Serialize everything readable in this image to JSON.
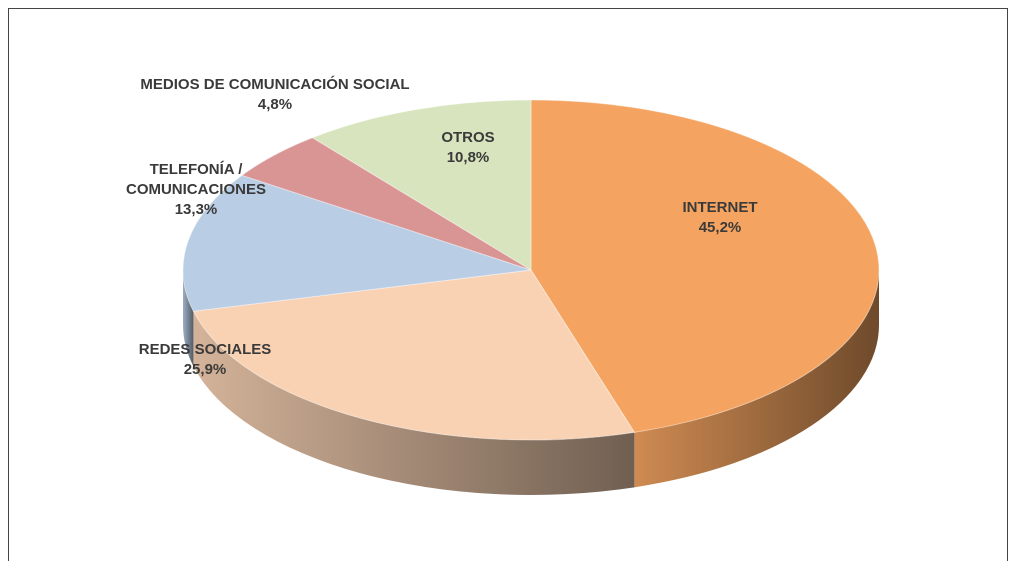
{
  "chart_data": {
    "type": "pie",
    "categories": [
      "INTERNET",
      "REDES SOCIALES",
      "TELEFONÍA / COMUNICACIONES",
      "MEDIOS DE COMUNICACIÓN SOCIAL",
      "OTROS"
    ],
    "values": [
      45.2,
      25.9,
      13.3,
      4.8,
      10.8
    ],
    "value_labels": [
      "45,2%",
      "25,9%",
      "13,3%",
      "4,8%",
      "10,8%"
    ],
    "colors": [
      "#f4a460",
      "#f9d2b4",
      "#b9cde5",
      "#d99594",
      "#d7e4bd"
    ]
  }
}
